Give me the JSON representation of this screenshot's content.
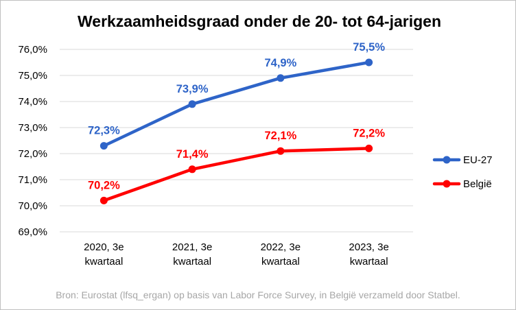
{
  "chart_data": {
    "type": "line",
    "title": "Werkzaamheidsgraad onder de 20- tot 64-jarigen",
    "categories": [
      [
        "2020, 3e",
        "kwartaal"
      ],
      [
        "2021, 3e",
        "kwartaal"
      ],
      [
        "2022, 3e",
        "kwartaal"
      ],
      [
        "2023, 3e",
        "kwartaal"
      ]
    ],
    "ylim": [
      69.0,
      76.0
    ],
    "yticks": [
      69.0,
      70.0,
      71.0,
      72.0,
      73.0,
      74.0,
      75.0,
      76.0
    ],
    "ytick_labels": [
      "69,0%",
      "70,0%",
      "71,0%",
      "72,0%",
      "73,0%",
      "74,0%",
      "75,0%",
      "76,0%"
    ],
    "grid": true,
    "legend_position": "right",
    "series": [
      {
        "name": "EU-27",
        "color": "#2e64c8",
        "values": [
          72.3,
          73.9,
          74.9,
          75.5
        ],
        "labels": [
          "72,3%",
          "73,9%",
          "74,9%",
          "75,5%"
        ]
      },
      {
        "name": "België",
        "color": "#ff0000",
        "values": [
          70.2,
          71.4,
          72.1,
          72.2
        ],
        "labels": [
          "70,2%",
          "71,4%",
          "72,1%",
          "72,2%"
        ]
      }
    ],
    "source": "Bron: Eurostat  (lfsq_ergan)  op basis van  Labor Force Survey,  in België verzameld  door Statbel."
  }
}
